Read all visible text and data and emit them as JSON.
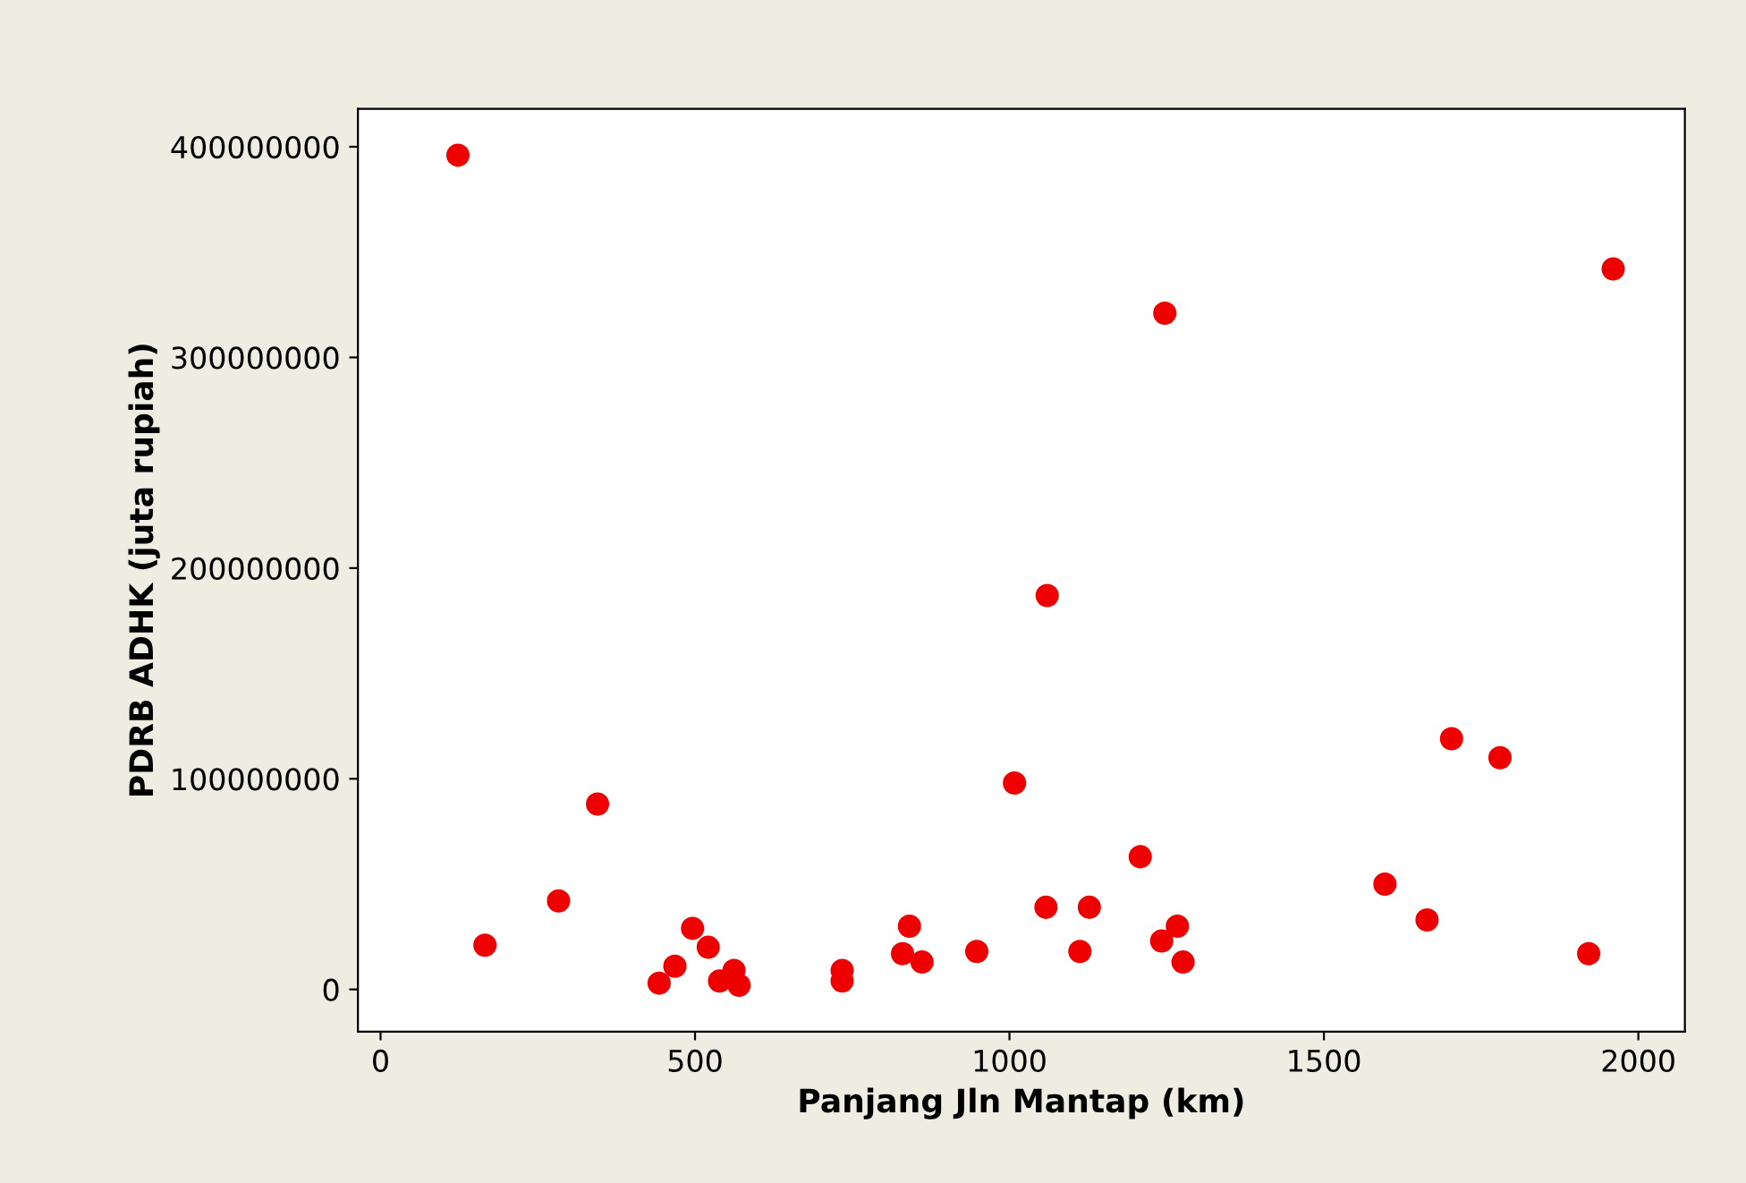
{
  "chart_data": {
    "type": "scatter",
    "xlabel": "Panjang Jln Mantap (km)",
    "ylabel": "PDRB ADHK (juta rupiah)",
    "x": [
      123,
      166,
      283,
      345,
      443,
      468,
      496,
      521,
      539,
      562,
      570,
      734,
      734,
      841,
      830,
      861,
      948,
      1008,
      1060,
      1058,
      1127,
      1112,
      1208,
      1247,
      1267,
      1242,
      1276,
      1597,
      1664,
      1703,
      1780,
      1921,
      1960
    ],
    "series": [
      {
        "color": "#ee0000",
        "values": [
          396000000,
          21000000,
          42000000,
          88000000,
          3000000,
          11000000,
          29000000,
          20000000,
          4000000,
          9000000,
          2000000,
          9000000,
          4000000,
          30000000,
          17000000,
          13000000,
          18000000,
          98000000,
          187000000,
          39000000,
          39000000,
          18000000,
          63000000,
          321000000,
          30000000,
          23000000,
          13000000,
          50000000,
          33000000,
          119000000,
          110000000,
          17000000,
          342000000
        ]
      }
    ],
    "xlim": [
      -36,
      2074
    ],
    "ylim": [
      -20000000,
      418000000
    ],
    "xticks": [
      0,
      500,
      1000,
      1500,
      2000
    ],
    "yticks": [
      0,
      100000000,
      200000000,
      300000000,
      400000000
    ],
    "marker": "circle",
    "grid": false,
    "legend": false
  }
}
